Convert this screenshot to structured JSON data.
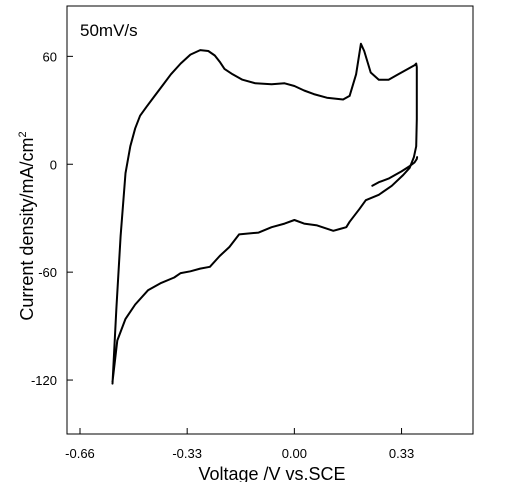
{
  "chart_data": {
    "type": "line",
    "annotation": "50mV/s",
    "xlabel": "Voltage /V vs.SCE",
    "ylabel_main": "Current density/mA/cm",
    "ylabel_sup": "2",
    "xlim": [
      -0.7,
      0.55
    ],
    "ylim": [
      -150,
      88
    ],
    "xticks": [
      -0.66,
      -0.33,
      0.0,
      0.33
    ],
    "xtick_labels": [
      "-0.66",
      "-0.33",
      "0.00",
      "0.33"
    ],
    "yticks": [
      60,
      0,
      -60,
      -120
    ],
    "ytick_labels": [
      "60",
      "0",
      "-60",
      "-120"
    ],
    "grid": false,
    "series": [
      {
        "x": [
          -0.56,
          -0.548,
          -0.535,
          -0.52,
          -0.505,
          -0.49,
          -0.475,
          -0.455,
          -0.43,
          -0.405,
          -0.38,
          -0.35,
          -0.32,
          -0.29,
          -0.265,
          -0.245,
          -0.23,
          -0.215,
          -0.19,
          -0.16,
          -0.12,
          -0.07,
          -0.03,
          0.0,
          0.03,
          0.06,
          0.1,
          0.15,
          0.17,
          0.19,
          0.205,
          0.215,
          0.235,
          0.26,
          0.29,
          0.32,
          0.35,
          0.37,
          0.375,
          0.377,
          0.377,
          0.375,
          0.368,
          0.355,
          0.335,
          0.3,
          0.26,
          0.22,
          0.2,
          0.17,
          0.16,
          0.14,
          0.12,
          0.07,
          0.03,
          0.0,
          -0.03,
          -0.07,
          -0.11,
          -0.17,
          -0.2,
          -0.23,
          -0.26,
          -0.29,
          -0.32,
          -0.35,
          -0.37,
          -0.41,
          -0.45,
          -0.49,
          -0.52,
          -0.545,
          -0.56
        ],
        "y": [
          -122,
          -80,
          -40,
          -5,
          10,
          20,
          27,
          32,
          38,
          44,
          50,
          56,
          61,
          63.5,
          63,
          60.5,
          57,
          53,
          50,
          47,
          45,
          44.5,
          45,
          43.5,
          41,
          39,
          37,
          36,
          38,
          50,
          67,
          63,
          51,
          47,
          47,
          50,
          53,
          55,
          56,
          54,
          25,
          10,
          4,
          -2,
          -6,
          -12,
          -17,
          -20,
          -25,
          -32,
          -35,
          -36,
          -37,
          -34,
          -33,
          -31,
          -33,
          -35,
          -38,
          -39,
          -46,
          -51,
          -57,
          -58,
          -59.5,
          -60.5,
          -63,
          -66,
          -70,
          -78,
          -86,
          -98,
          -121
        ]
      },
      {
        "x": [
          0.24,
          0.26,
          0.29,
          0.31,
          0.33,
          0.355,
          0.37,
          0.377,
          0.378
        ],
        "y": [
          -12,
          -10,
          -8,
          -6,
          -4,
          -1,
          1,
          3,
          4
        ]
      }
    ]
  }
}
